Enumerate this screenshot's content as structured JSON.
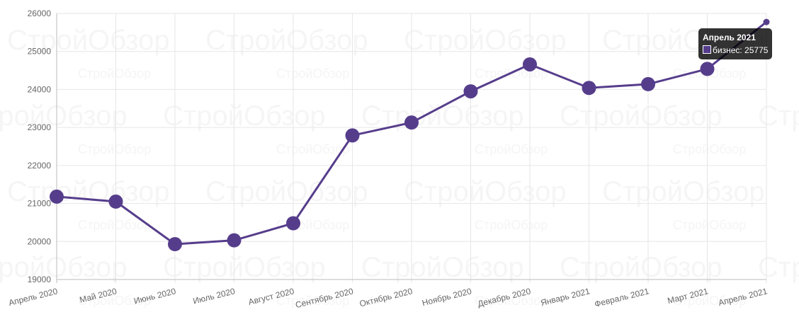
{
  "chart_data": {
    "type": "line",
    "categories": [
      "Апрель 2020",
      "Май 2020",
      "Июнь 2020",
      "Июль 2020",
      "Август 2020",
      "Сентябрь 2020",
      "Октябрь 2020",
      "Ноябрь 2020",
      "Декабрь 2020",
      "Январь 2021",
      "Февраль 2021",
      "Март 2021",
      "Апрель 2021"
    ],
    "series": [
      {
        "name": "бизнес",
        "values": [
          21180,
          21050,
          19930,
          20030,
          20480,
          22790,
          23130,
          23950,
          24660,
          24040,
          24140,
          24540,
          25775
        ],
        "color": "#563d8c"
      }
    ],
    "ylim": [
      19000,
      26000
    ],
    "yticks": [
      19000,
      20000,
      21000,
      22000,
      23000,
      24000,
      25000,
      26000
    ],
    "grid": true,
    "legend": "none"
  },
  "tooltip": {
    "title": "Апрель 2021",
    "label": "бизнес: 25775"
  },
  "watermark": "СтройОбзор"
}
